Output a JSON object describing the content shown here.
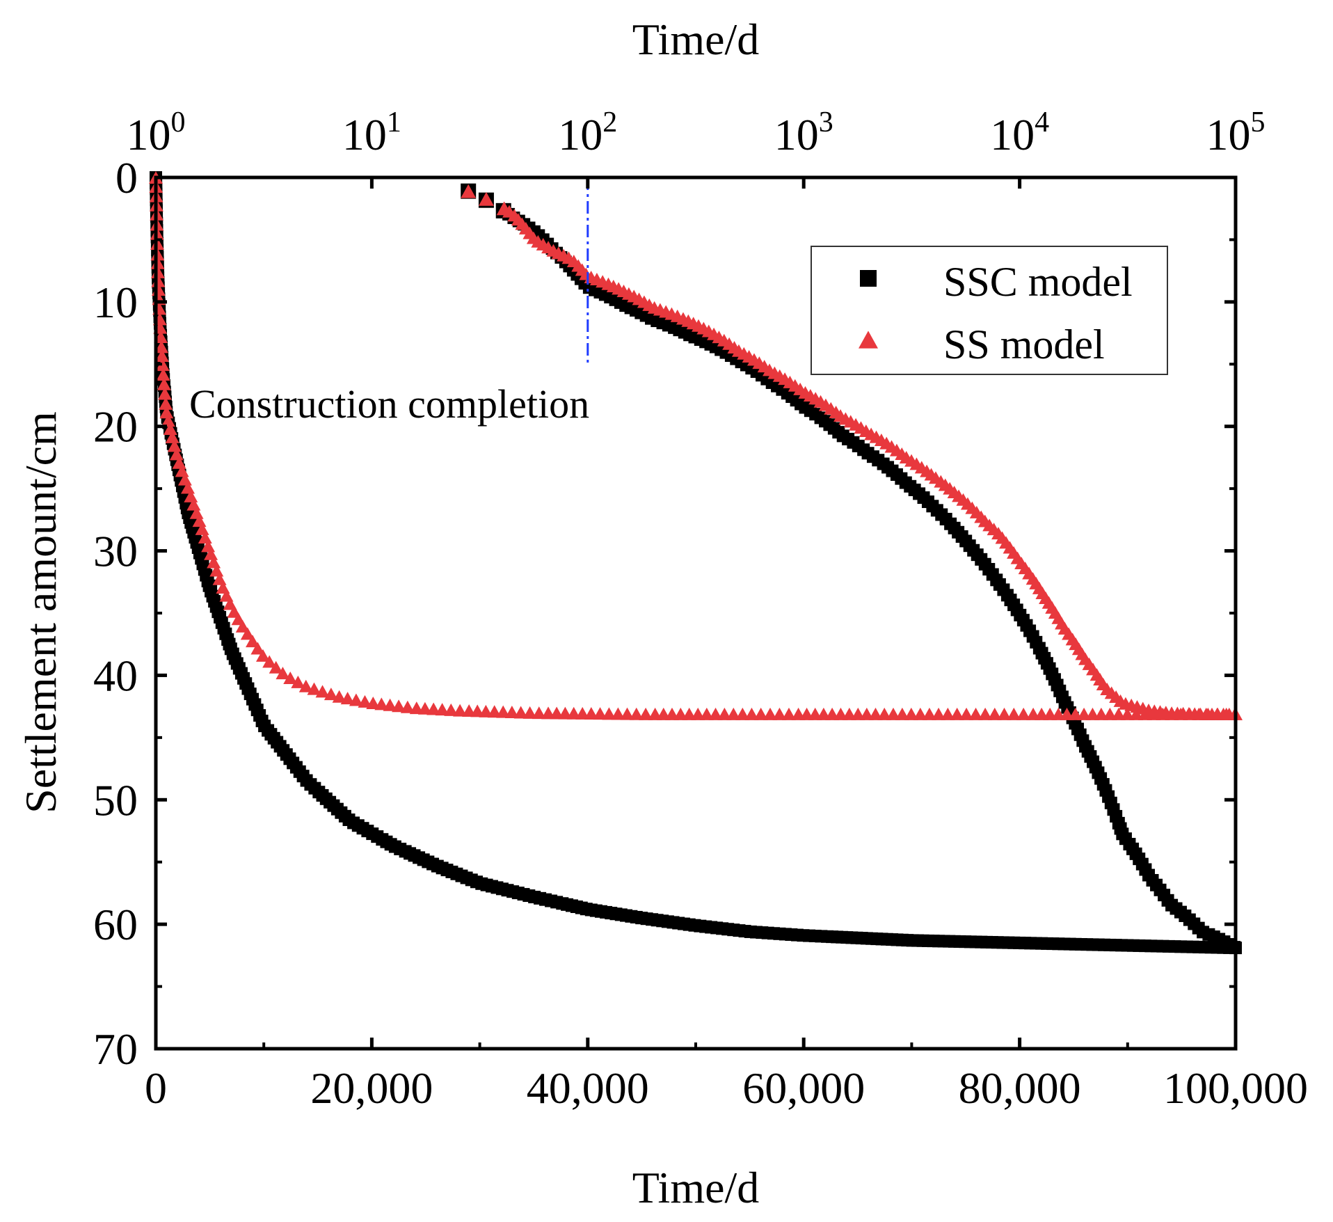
{
  "chart_data": {
    "type": "scatter",
    "xlabel_top": "Time/d",
    "xlabel_bottom": "Time/d",
    "ylabel": "Settlement amount/cm",
    "ylim": [
      70,
      0
    ],
    "y_inverted": true,
    "y_ticks": [
      "0",
      "10",
      "20",
      "30",
      "40",
      "50",
      "60",
      "70"
    ],
    "y_tick_values": [
      0,
      10,
      20,
      30,
      40,
      50,
      60,
      70
    ],
    "bottom_axis": {
      "scale": "linear",
      "range": [
        0,
        100000
      ],
      "ticks": [
        "0",
        "20,000",
        "40,000",
        "60,000",
        "80,000",
        "100,000"
      ],
      "tick_values": [
        0,
        20000,
        40000,
        60000,
        80000,
        100000
      ]
    },
    "top_axis": {
      "scale": "log",
      "range": [
        1,
        100000
      ],
      "tick_base": "10",
      "tick_exponents": [
        "0",
        "1",
        "2",
        "3",
        "4",
        "5"
      ],
      "tick_values": [
        1,
        10,
        100,
        1000,
        10000,
        100000
      ]
    },
    "annotation": {
      "text": "Construction completion",
      "line_x_top": 100,
      "line_color": "#1f3cff"
    },
    "legend_position": "top-right",
    "series": [
      {
        "name": "SSC model",
        "marker": "square",
        "color": "#000000",
        "linear_axis_curve": {
          "t": [
            0,
            100,
            200,
            400,
            700,
            1000,
            2000,
            3000,
            5000,
            7000,
            10000,
            14000,
            18000,
            22000,
            26000,
            30000,
            35000,
            40000,
            45000,
            50000,
            55000,
            60000,
            65000,
            70000,
            75000,
            80000,
            85000,
            90000,
            95000,
            100000
          ],
          "y": [
            0,
            4.5,
            8,
            12,
            16,
            19,
            23,
            27,
            33,
            38,
            44,
            48.5,
            51.7,
            53.7,
            55.3,
            56.7,
            57.8,
            58.8,
            59.5,
            60.1,
            60.6,
            60.9,
            61.1,
            61.3,
            61.4,
            61.5,
            61.6,
            61.7,
            61.8,
            61.9
          ]
        },
        "log_axis_curve": {
          "t": [
            28,
            45,
            57,
            70,
            85,
            100,
            150,
            200,
            300,
            500,
            700,
            1000,
            1500,
            2000,
            3000,
            4000,
            5000,
            6000,
            7000,
            8000,
            10000,
            13000,
            16000,
            20000,
            25000,
            30000,
            40000,
            50000,
            70000,
            100000
          ],
          "y": [
            1.1,
            3.2,
            4.4,
            5.9,
            7.4,
            8.8,
            10.3,
            11.4,
            12.7,
            14.7,
            16.4,
            18.4,
            20.7,
            22.2,
            24.6,
            26.5,
            28.2,
            29.8,
            31.2,
            32.6,
            35.1,
            38.6,
            42.0,
            45.6,
            49.2,
            52.8,
            56.2,
            58.4,
            60.6,
            61.9
          ]
        }
      },
      {
        "name": "SS model",
        "marker": "triangle",
        "color": "#e8383d",
        "linear_axis_curve": {
          "t": [
            0,
            100,
            200,
            400,
            700,
            1000,
            2000,
            3000,
            4000,
            5000,
            6000,
            7000,
            8000,
            9000,
            10000,
            12000,
            14000,
            17000,
            20000,
            24000,
            28000,
            35000,
            45000,
            60000,
            75000,
            86000,
            100000
          ],
          "y": [
            0,
            4,
            8,
            12,
            16,
            19,
            22.5,
            25,
            27.5,
            30,
            32.5,
            34.5,
            36,
            37.3,
            38.5,
            40,
            40.9,
            41.7,
            42.2,
            42.6,
            42.8,
            43.0,
            43.1,
            43.1,
            43.1,
            43.1,
            43.1
          ]
        },
        "log_axis_curve": {
          "t": [
            28,
            45,
            57,
            70,
            85,
            100,
            150,
            200,
            300,
            500,
            700,
            1000,
            1500,
            2000,
            3000,
            4000,
            5000,
            6000,
            7000,
            8000,
            10000,
            13000,
            16000,
            20000,
            25000,
            30000,
            40000,
            50000,
            70000,
            100000
          ],
          "y": [
            1.1,
            2.9,
            5.0,
            5.9,
            6.6,
            7.9,
            9.2,
            10.4,
            11.6,
            13.9,
            15.5,
            17.2,
            19.2,
            20.5,
            22.5,
            24.0,
            25.3,
            26.5,
            27.7,
            28.6,
            30.8,
            33.6,
            36.1,
            38.6,
            41.0,
            42.2,
            42.8,
            43.0,
            43.1,
            43.1
          ]
        }
      }
    ]
  }
}
